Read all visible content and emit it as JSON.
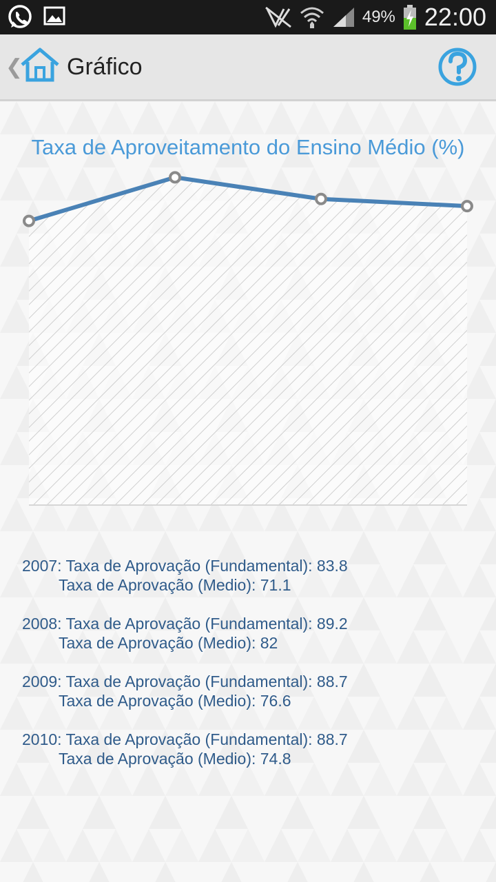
{
  "status_bar": {
    "battery": "49%",
    "time": "22:00",
    "icons": [
      "whatsapp-icon",
      "gallery-icon",
      "no-signal-icon",
      "wifi-icon",
      "signal-icon",
      "battery-charging-icon"
    ]
  },
  "header": {
    "title": "Gráfico",
    "icons": [
      "chevron-left-icon",
      "home-icon",
      "help-icon"
    ]
  },
  "colors": {
    "accent": "#4a9ad8",
    "line": "#4a82b6",
    "legend_text": "#2f5b8a"
  },
  "chart_data": {
    "type": "line",
    "title": "Taxa de Aproveitamento do Ensino Médio (%)",
    "categories": [
      "2007",
      "2008",
      "2009",
      "2010"
    ],
    "values": [
      71.1,
      82,
      76.6,
      74.8
    ],
    "ylim": [
      0,
      100
    ],
    "grid": false,
    "legend": "bottom"
  },
  "legend": [
    {
      "year_label": "2007: Taxa de Aprovação (Fundamental): 83.8",
      "medio_label": "Taxa de Aprovação (Medio): 71.1"
    },
    {
      "year_label": "2008: Taxa de Aprovação (Fundamental): 89.2",
      "medio_label": "Taxa de Aprovação (Medio): 82"
    },
    {
      "year_label": "2009: Taxa de Aprovação (Fundamental): 88.7",
      "medio_label": "Taxa de Aprovação (Medio): 76.6"
    },
    {
      "year_label": "2010: Taxa de Aprovação (Fundamental): 88.7",
      "medio_label": "Taxa de Aprovação (Medio): 74.8"
    }
  ]
}
